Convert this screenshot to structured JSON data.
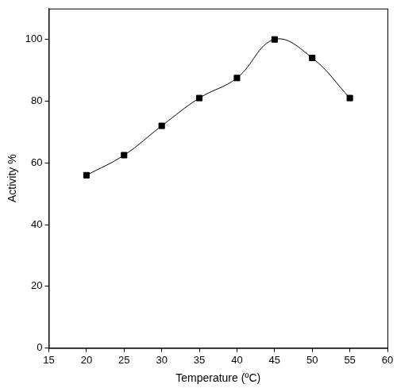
{
  "chart_data": {
    "type": "line",
    "x_label": "Temperature (ºC)",
    "y_label": "Activity %",
    "x": [
      20,
      25,
      30,
      35,
      40,
      45,
      50,
      55
    ],
    "values": [
      56,
      62.5,
      72,
      81,
      87.5,
      100,
      94,
      81
    ],
    "color": "#000000",
    "marker": "square",
    "line_style": "solid",
    "xlim": [
      15,
      60
    ],
    "xticks": [
      15,
      20,
      25,
      30,
      35,
      40,
      45,
      50,
      55,
      60
    ],
    "ylim": [
      0,
      110
    ],
    "yticks": [
      0,
      20,
      40,
      60,
      80,
      100
    ],
    "grid": false
  }
}
